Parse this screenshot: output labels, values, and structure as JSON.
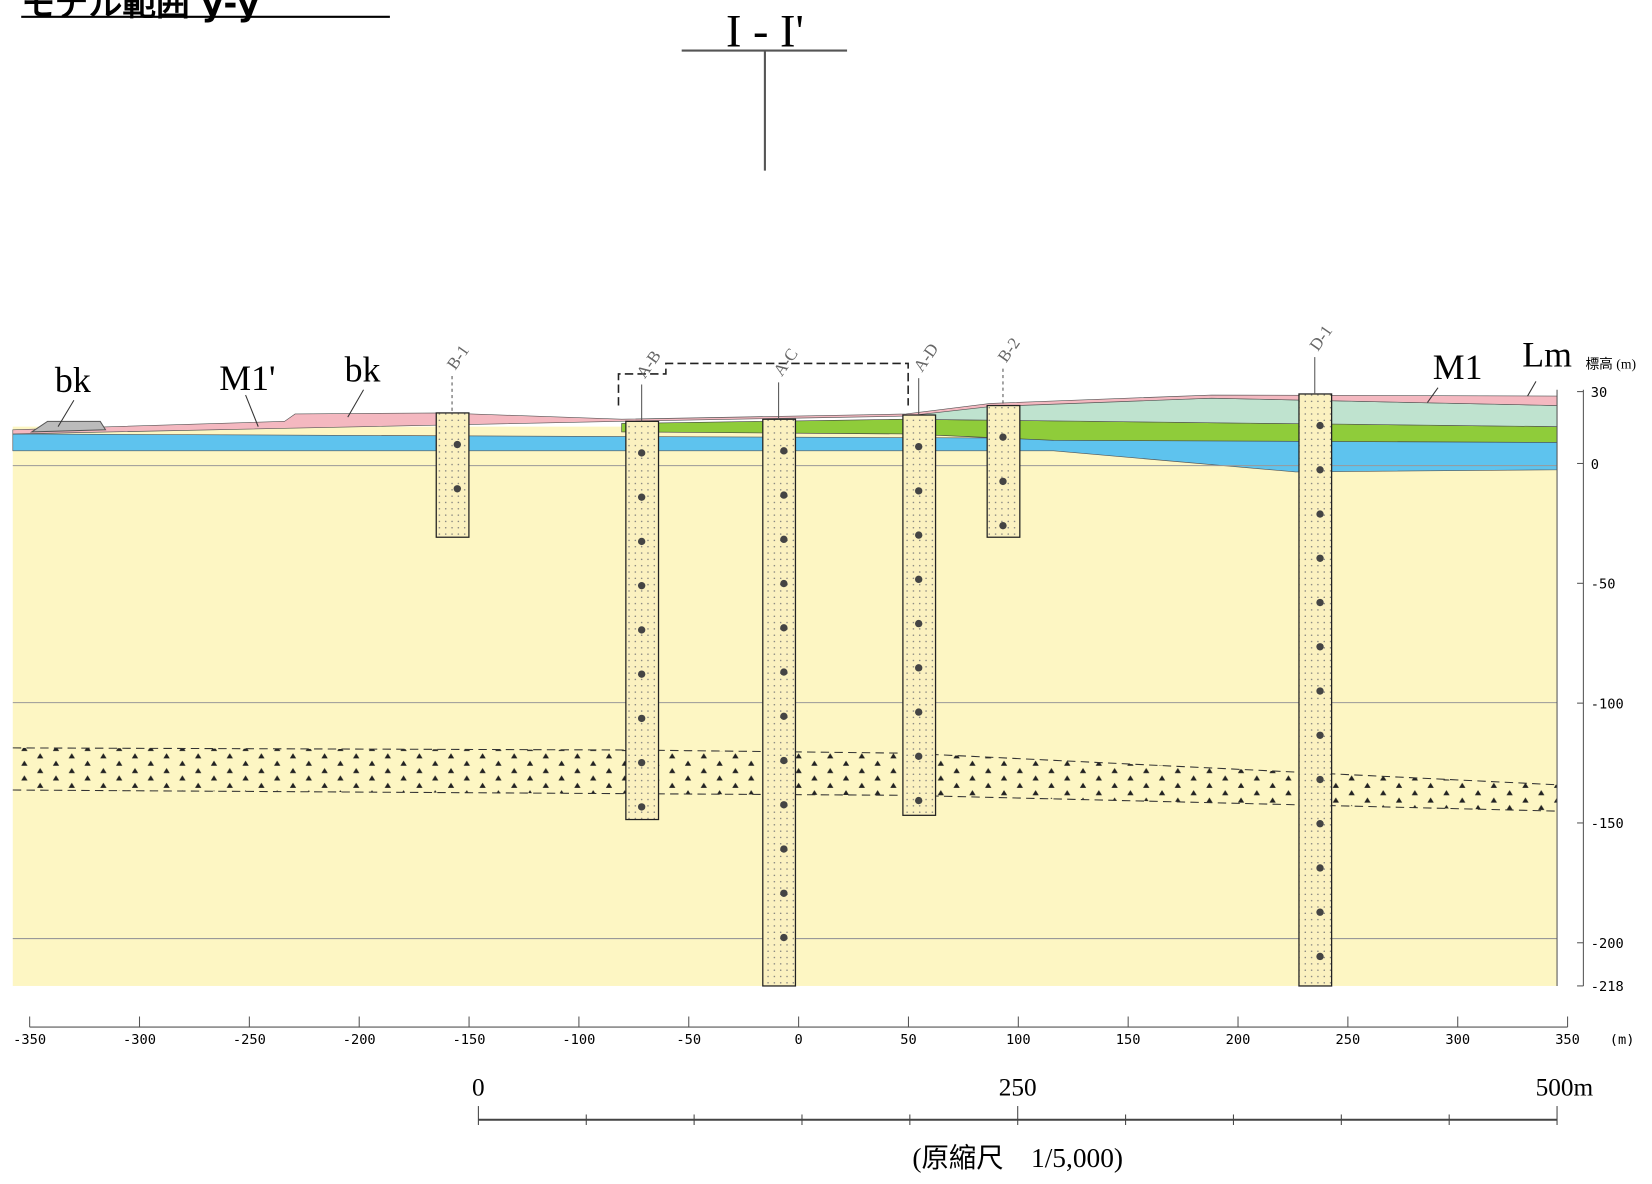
{
  "header": {
    "title": "モデル範囲 y-y'"
  },
  "section": {
    "label": "I - I'"
  },
  "units": [
    "bk",
    "M1'",
    "bk",
    "M1",
    "Lm"
  ],
  "boreholes": [
    "B-1",
    "A-B",
    "A-C",
    "A-D",
    "B-2",
    "D-1"
  ],
  "elevation_axis": {
    "label": "標高 (m)",
    "ticks": [
      30,
      0,
      -50,
      -100,
      -150,
      -200,
      -218
    ]
  },
  "distance_axis": {
    "label": "(m)",
    "ticks": [
      -350,
      -300,
      -250,
      -200,
      -150,
      -100,
      -50,
      0,
      50,
      100,
      150,
      200,
      250,
      300,
      350
    ]
  },
  "scale_bar": {
    "labels": [
      "0",
      "250",
      "500m"
    ],
    "note": "(原縮尺　1/5,000)"
  }
}
